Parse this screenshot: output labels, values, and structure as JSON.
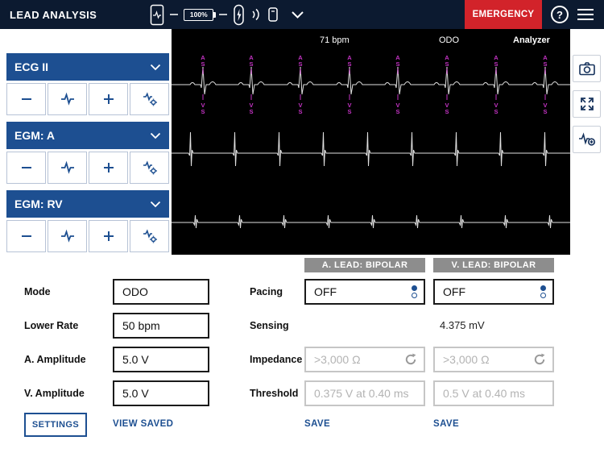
{
  "header": {
    "title": "LEAD ANALYSIS",
    "battery": "100%",
    "emergency": "EMERGENCY",
    "help": "?"
  },
  "status": {
    "rate": "71 bpm",
    "mode": "ODO",
    "source": "Analyzer"
  },
  "channels": [
    {
      "label": "ECG II"
    },
    {
      "label": "EGM: A"
    },
    {
      "label": "EGM: RV"
    }
  ],
  "chart_data": {
    "type": "line",
    "title": "",
    "colors": {
      "trace": "#e0e0e0",
      "marker": "#c433c4",
      "background": "#000000"
    },
    "traces": [
      {
        "name": "ECG II",
        "kind": "ecg",
        "baseline": 69,
        "beats": [
          39,
          99,
          160,
          221,
          281,
          342,
          403,
          464
        ],
        "markers_top": "AS",
        "markers_bottom": "VS"
      },
      {
        "name": "EGM: A",
        "kind": "spike",
        "baseline": 154,
        "up": 26,
        "down": 16,
        "beats": [
          24,
          79,
          134,
          189,
          244,
          299,
          354,
          409,
          464
        ]
      },
      {
        "name": "EGM: RV",
        "kind": "spike",
        "baseline": 240,
        "up": 9,
        "down": 7,
        "beats": [
          30,
          85,
          140,
          195,
          250,
          305,
          360,
          415,
          470
        ]
      }
    ]
  },
  "form": {
    "left_rows": [
      {
        "label": "Mode",
        "value": "ODO"
      },
      {
        "label": "Lower Rate",
        "value": "50 bpm"
      },
      {
        "label": "A. Amplitude",
        "value": "5.0 V"
      },
      {
        "label": "V. Amplitude",
        "value": "5.0 V"
      }
    ],
    "mid_labels": [
      "Pacing",
      "Sensing",
      "Impedance",
      "Threshold"
    ],
    "lead_columns": [
      {
        "header": "A. LEAD: BIPOLAR",
        "pacing": "OFF",
        "sensing": "",
        "impedance": ">3,000 Ω",
        "threshold": "0.375 V at 0.40 ms",
        "save": "SAVE"
      },
      {
        "header": "V. LEAD: BIPOLAR",
        "pacing": "OFF",
        "sensing": "4.375 mV",
        "impedance": ">3,000 Ω",
        "threshold": "0.5 V at 0.40 ms",
        "save": "SAVE"
      }
    ],
    "settings": "SETTINGS",
    "view_saved": "VIEW SAVED"
  }
}
